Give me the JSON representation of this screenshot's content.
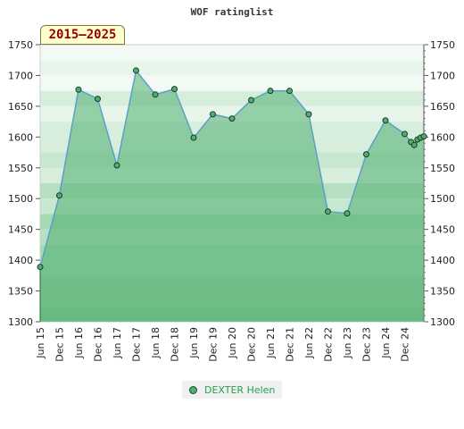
{
  "chart_data": {
    "type": "area",
    "title": "WOF ratinglist",
    "range_label": "2015–2025",
    "ylim": [
      1300,
      1750
    ],
    "y_ticks": [
      1300,
      1350,
      1400,
      1450,
      1500,
      1550,
      1600,
      1650,
      1700,
      1750
    ],
    "x_tick_labels": [
      "Jun 15",
      "Dec 15",
      "Jun 16",
      "Dec 16",
      "Jun 17",
      "Dec 17",
      "Jun 18",
      "Dec 18",
      "Jun 19",
      "Dec 19",
      "Jun 20",
      "Dec 20",
      "Jun 21",
      "Dec 21",
      "Jun 22",
      "Dec 22",
      "Jun 23",
      "Dec 23",
      "Jun 24",
      "Dec 24"
    ],
    "legend_position": "bottom",
    "series": [
      {
        "name": "DEXTER Helen",
        "color": "#4fae6f",
        "points": [
          {
            "x": "Jun 15",
            "y": 1389
          },
          {
            "x": "Dec 15",
            "y": 1505
          },
          {
            "x": "Jun 16",
            "y": 1677
          },
          {
            "x": "Dec 16",
            "y": 1662
          },
          {
            "x": "Jun 17",
            "y": 1554
          },
          {
            "x": "Dec 17",
            "y": 1708
          },
          {
            "x": "Jun 18",
            "y": 1669
          },
          {
            "x": "Dec 18",
            "y": 1678
          },
          {
            "x": "Jun 19",
            "y": 1599
          },
          {
            "x": "Dec 19",
            "y": 1637
          },
          {
            "x": "Jun 20",
            "y": 1630
          },
          {
            "x": "Dec 20",
            "y": 1660
          },
          {
            "x": "Jun 21",
            "y": 1675
          },
          {
            "x": "Dec 21",
            "y": 1675
          },
          {
            "x": "Jun 22",
            "y": 1637
          },
          {
            "x": "Dec 22",
            "y": 1479
          },
          {
            "x": "Jun 23",
            "y": 1476
          },
          {
            "x": "Dec 23",
            "y": 1572
          },
          {
            "x": "Jun 24",
            "y": 1627
          },
          {
            "x": "Dec 24",
            "y": 1605
          },
          {
            "x": "Feb 25",
            "y": 1592
          },
          {
            "x": "Mar 25",
            "y": 1587
          },
          {
            "x": "Apr 25",
            "y": 1596
          },
          {
            "x": "May 25",
            "y": 1599
          },
          {
            "x": "Jun 25",
            "y": 1601
          }
        ]
      }
    ]
  }
}
